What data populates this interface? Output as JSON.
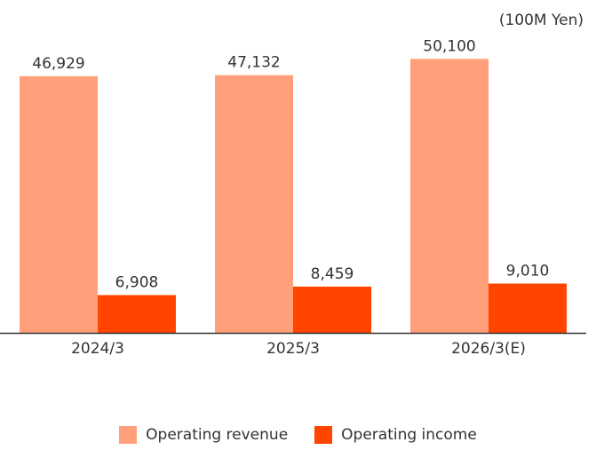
{
  "chart_data": {
    "type": "bar",
    "unit": "(100M Yen)",
    "categories": [
      "2024/3",
      "2025/3",
      "2026/3(E)"
    ],
    "series": [
      {
        "name": "Operating revenue",
        "values": [
          46929,
          47132,
          50100
        ],
        "labels": [
          "46,929",
          "47,132",
          "50,100"
        ],
        "color": "#ffa07a"
      },
      {
        "name": "Operating income",
        "values": [
          6908,
          8459,
          9010
        ],
        "labels": [
          "6,908",
          "8,459",
          "9,010"
        ],
        "color": "#ff4500"
      }
    ],
    "ylim": [
      0,
      56000
    ],
    "grid": false,
    "legend": "bottom-center"
  }
}
